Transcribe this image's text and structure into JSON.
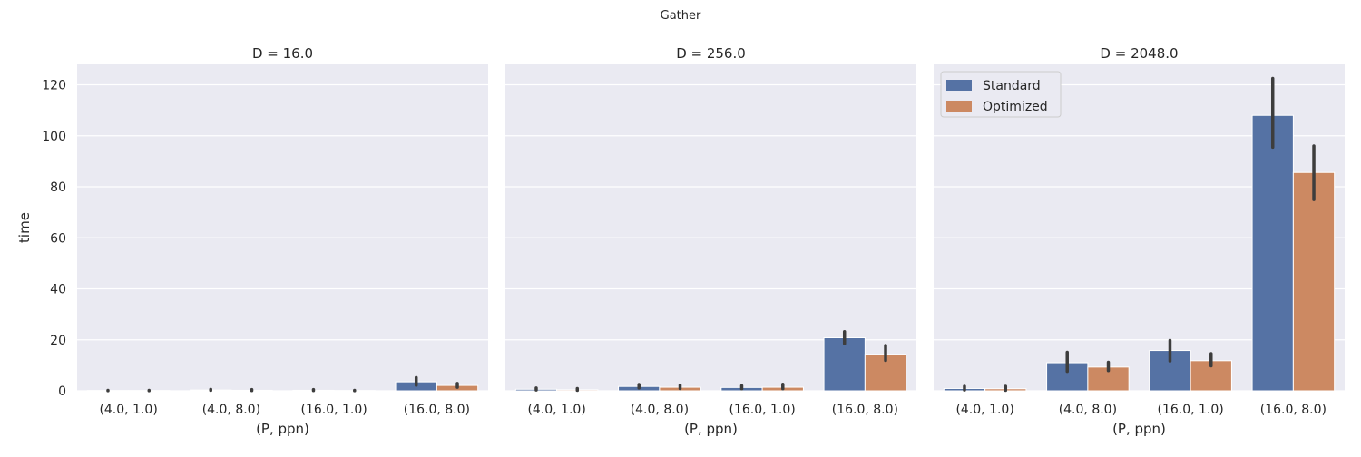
{
  "suptitle": "Gather",
  "chart_data": [
    {
      "type": "bar",
      "title": "D = 16.0",
      "xlabel": "(P, ppn)",
      "ylabel": "time",
      "categories": [
        "(4.0, 1.0)",
        "(4.0, 8.0)",
        "(16.0, 1.0)",
        "(16.0, 8.0)"
      ],
      "ylim": [
        0,
        128
      ],
      "yticks": [
        "0",
        "20",
        "40",
        "60",
        "80",
        "100",
        "120"
      ],
      "grid": true,
      "series": [
        {
          "name": "Standard",
          "color": "#5572a4",
          "values": [
            0.1,
            0.3,
            0.2,
            3.5
          ],
          "err_low": [
            0.05,
            0.2,
            0.1,
            2.2
          ],
          "err_high": [
            0.2,
            0.6,
            0.5,
            5.2
          ]
        },
        {
          "name": "Optimized",
          "color": "#cc8962",
          "values": [
            0.1,
            0.2,
            0.1,
            2.1
          ],
          "err_low": [
            0.05,
            0.1,
            0.05,
            1.4
          ],
          "err_high": [
            0.2,
            0.5,
            0.2,
            2.9
          ]
        }
      ]
    },
    {
      "type": "bar",
      "title": "D = 256.0",
      "xlabel": "(P, ppn)",
      "ylabel": "",
      "categories": [
        "(4.0, 1.0)",
        "(4.0, 8.0)",
        "(16.0, 1.0)",
        "(16.0, 8.0)"
      ],
      "ylim": [
        0,
        128
      ],
      "yticks": [],
      "grid": true,
      "series": [
        {
          "name": "Standard",
          "color": "#5572a4",
          "values": [
            0.6,
            1.7,
            1.3,
            20.8
          ],
          "err_low": [
            0.3,
            1.1,
            0.8,
            18.5
          ],
          "err_high": [
            1.1,
            2.5,
            2.0,
            23.2
          ]
        },
        {
          "name": "Optimized",
          "color": "#cc8962",
          "values": [
            0.4,
            1.4,
            1.4,
            14.3
          ],
          "err_low": [
            0.2,
            0.9,
            0.8,
            11.9
          ],
          "err_high": [
            0.9,
            2.2,
            2.6,
            17.8
          ]
        }
      ]
    },
    {
      "type": "bar",
      "title": "D = 2048.0",
      "xlabel": "(P, ppn)",
      "ylabel": "",
      "categories": [
        "(4.0, 1.0)",
        "(4.0, 8.0)",
        "(16.0, 1.0)",
        "(16.0, 8.0)"
      ],
      "ylim": [
        0,
        128
      ],
      "yticks": [],
      "grid": true,
      "legend": {
        "placement": "top-left",
        "entries": [
          "Standard",
          "Optimized"
        ]
      },
      "series": [
        {
          "name": "Standard",
          "color": "#5572a4",
          "values": [
            0.9,
            11.0,
            15.8,
            108.0
          ],
          "err_low": [
            0.3,
            7.6,
            11.7,
            95.5
          ],
          "err_high": [
            1.8,
            15.1,
            19.8,
            122.5
          ]
        },
        {
          "name": "Optimized",
          "color": "#cc8962",
          "values": [
            0.8,
            9.3,
            11.8,
            85.6
          ],
          "err_low": [
            0.2,
            7.9,
            9.8,
            75.0
          ],
          "err_high": [
            1.8,
            11.2,
            14.6,
            96.0
          ]
        }
      ]
    }
  ]
}
